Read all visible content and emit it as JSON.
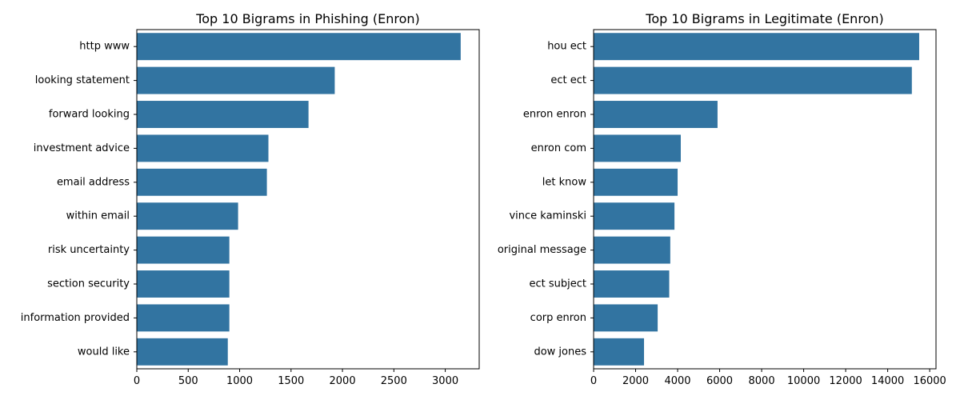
{
  "chart_data": [
    {
      "type": "bar",
      "orientation": "horizontal",
      "title": "Top 10 Bigrams in Phishing (Enron)",
      "xlabel": "",
      "ylabel": "",
      "categories": [
        "http www",
        "looking statement",
        "forward looking",
        "investment advice",
        "email address",
        "within email",
        "risk uncertainty",
        "section security",
        "information provided",
        "would like"
      ],
      "values": [
        3150,
        1925,
        1670,
        1280,
        1265,
        985,
        900,
        900,
        900,
        885
      ],
      "xlim": [
        0,
        3330
      ],
      "xticks": [
        0,
        500,
        1000,
        1500,
        2000,
        2500,
        3000
      ],
      "grid": false,
      "color": "#3274a1"
    },
    {
      "type": "bar",
      "orientation": "horizontal",
      "title": "Top 10 Bigrams in Legitimate (Enron)",
      "xlabel": "",
      "ylabel": "",
      "categories": [
        "hou ect",
        "ect ect",
        "enron enron",
        "enron com",
        "let know",
        "vince kaminski",
        "original message",
        "ect subject",
        "corp enron",
        "dow jones"
      ],
      "values": [
        15500,
        15150,
        5900,
        4150,
        4000,
        3850,
        3650,
        3600,
        3050,
        2400
      ],
      "xlim": [
        0,
        16300
      ],
      "xticks": [
        0,
        2000,
        4000,
        6000,
        8000,
        10000,
        12000,
        14000,
        16000
      ],
      "grid": false,
      "color": "#3274a1"
    }
  ]
}
